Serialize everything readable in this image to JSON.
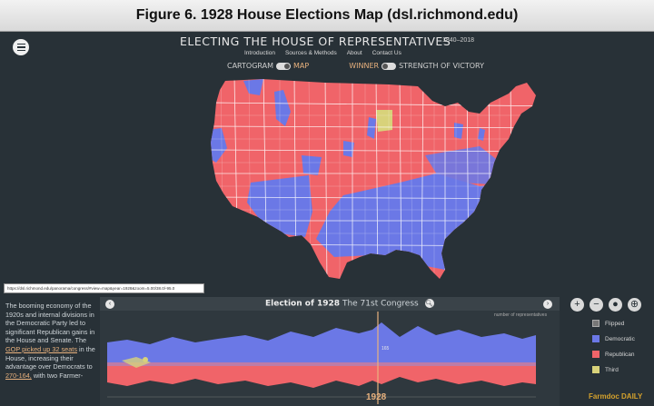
{
  "figure_title": "Figure 6. 1928 House Elections Map (dsl.richmond.edu)",
  "header": {
    "title": "ELECTING THE HOUSE OF REPRESENTATIVES",
    "years": "1840–2018",
    "nav": [
      "Introduction",
      "Sources & Methods",
      "About",
      "Contact Us"
    ]
  },
  "toggles": {
    "view_left": "CARTOGRAM",
    "view_right": "MAP",
    "mode_left": "WINNER",
    "mode_right": "STRENGTH OF VICTORY"
  },
  "url": "https://dsl.richmond.edu/panorama/congress/#view=map&year=1928&zoom=5.00/38.0/-95.0",
  "narrative": {
    "part1": "The booming economy of the 1920s and internal divisions in the Democratic Party led to significant Republican gains in the House and Senate. The",
    "link": "GOP picked up 32 seats",
    "part2": "in the House, increasing their advantage over Democrats to",
    "link2": "270-164,",
    "part3": "with two Farmer-"
  },
  "timeline": {
    "title": "Election of 1928",
    "congress": "The 71st Congress",
    "y_axis_label": "number of representatives",
    "selected_year": "1928",
    "seat_label": "165"
  },
  "legend": {
    "flipped": "Flipped",
    "items": [
      {
        "label": "Democratic",
        "color": "#6b78e6"
      },
      {
        "label": "Republican",
        "color": "#f06469"
      },
      {
        "label": "Third",
        "color": "#d8d27a"
      }
    ]
  },
  "watermark": "Farmdoc DAILY",
  "colors": {
    "democratic": "#6b78e6",
    "republican": "#f06469",
    "third": "#d8d27a",
    "background": "#283137",
    "accent": "#e9b27e"
  }
}
